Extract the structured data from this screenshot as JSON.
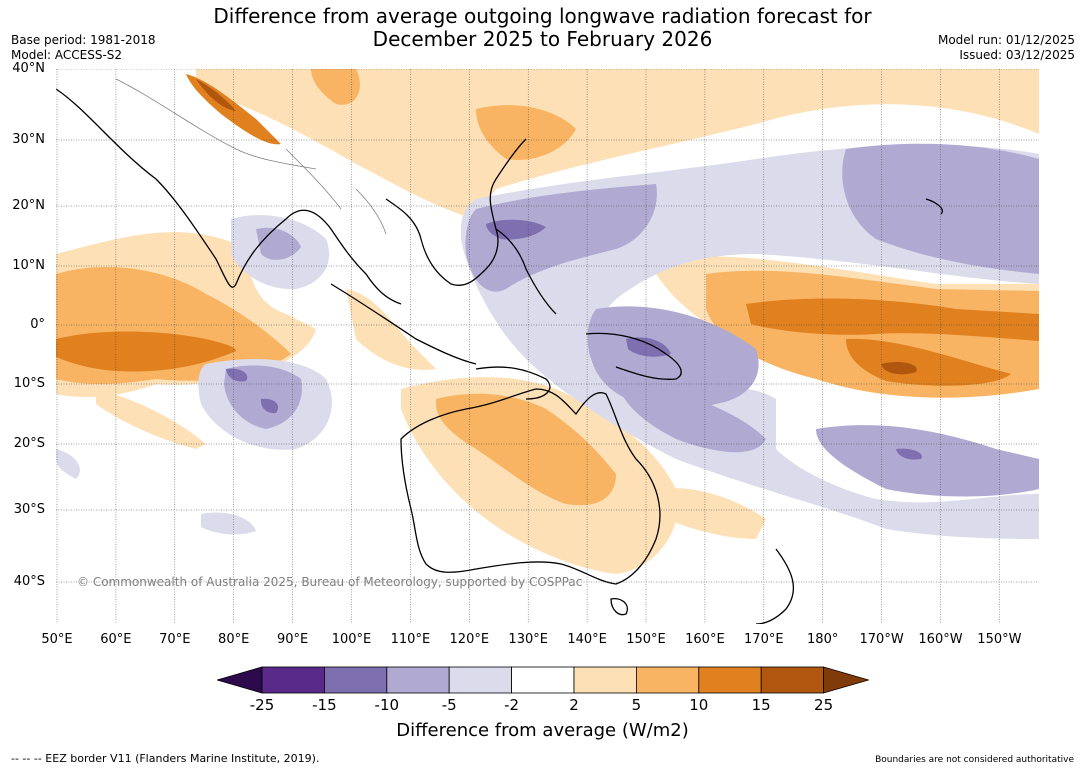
{
  "title": {
    "line1": "Difference from average outgoing longwave radiation forecast for",
    "line2": "December 2025 to February 2026"
  },
  "meta": {
    "base_period": "Base period: 1981-2018",
    "model": "Model: ACCESS-S2",
    "model_run": "Model run: 01/12/2025",
    "issued": "Issued: 03/12/2025"
  },
  "map": {
    "lat_labels": [
      "40°N",
      "30°N",
      "20°N",
      "10°N",
      "0°",
      "10°S",
      "20°S",
      "30°S",
      "40°S"
    ],
    "lon_labels": [
      "50°E",
      "60°E",
      "70°E",
      "80°E",
      "90°E",
      "100°E",
      "110°E",
      "120°E",
      "130°E",
      "140°E",
      "150°E",
      "160°E",
      "170°E",
      "180°",
      "170°W",
      "160°W",
      "150°W"
    ],
    "copyright": "© Commonwealth of Australia 2025, Bureau of Meteorology, supported by COSPPac"
  },
  "colorbar": {
    "ticks": [
      "-25",
      "-15",
      "-10",
      "-5",
      "-2",
      "2",
      "5",
      "10",
      "15",
      "25"
    ],
    "colors": [
      "#2d0a4e",
      "#5a2a8a",
      "#7d6fb0",
      "#b0a9d2",
      "#dbdbeb",
      "#ffffff",
      "#fde0b5",
      "#f8b463",
      "#e0801e",
      "#b1560f",
      "#7f3b08"
    ],
    "label": "Difference from average (W/m2)"
  },
  "footer": {
    "left": "--  --  -- EEZ border V11 (Flanders Marine Institute, 2019).",
    "right": "Boundaries are not considered authoritative"
  }
}
